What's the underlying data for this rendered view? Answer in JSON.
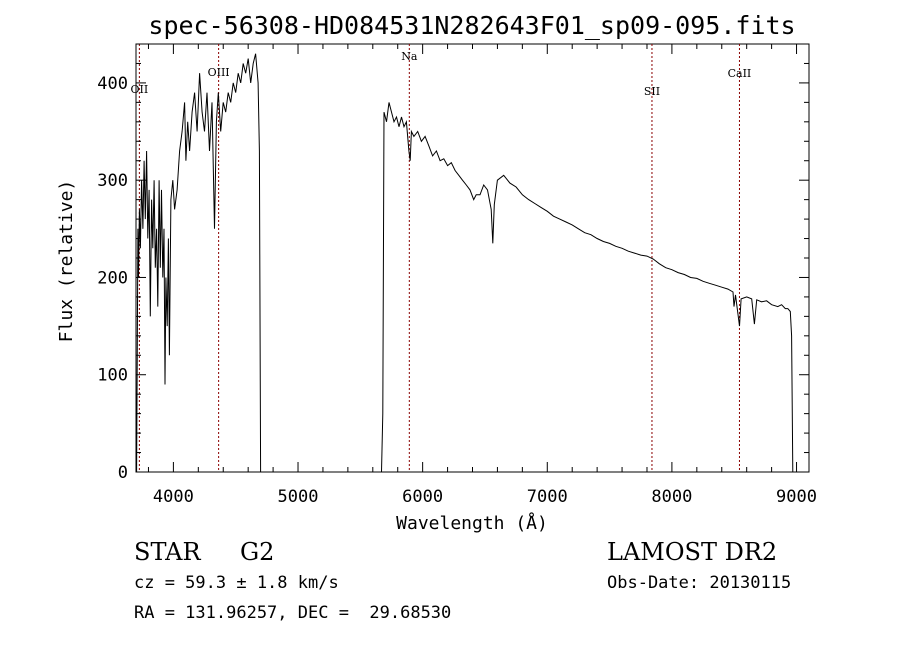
{
  "chart_data": {
    "type": "line",
    "title": "spec-56308-HD084531N282643F01_sp09-095.fits",
    "xlabel": "Wavelength (Å)",
    "ylabel": "Flux (relative)",
    "xlim": [
      3700,
      9100
    ],
    "ylim": [
      0,
      440
    ],
    "xticks": [
      4000,
      5000,
      6000,
      7000,
      8000,
      9000
    ],
    "yticks": [
      0,
      100,
      200,
      300,
      400
    ],
    "grid": false,
    "line_color": "#000000",
    "marker_color": "#8b0000",
    "lines": [
      {
        "label": "OII",
        "x": 3727
      },
      {
        "label": "OIII",
        "x": 4363
      },
      {
        "label": "Na",
        "x": 5893
      },
      {
        "label": "SII",
        "x": 7840
      },
      {
        "label": "CaII",
        "x": 8542
      }
    ],
    "series": [
      {
        "segments": [
          [
            [
              3705,
              0
            ],
            [
              3710,
              110
            ],
            [
              3715,
              250
            ],
            [
              3720,
              200
            ],
            [
              3727,
              270
            ],
            [
              3735,
              230
            ],
            [
              3745,
              300
            ],
            [
              3755,
              250
            ],
            [
              3765,
              320
            ],
            [
              3775,
              260
            ],
            [
              3785,
              330
            ],
            [
              3795,
              240
            ],
            [
              3805,
              290
            ],
            [
              3815,
              160
            ],
            [
              3825,
              280
            ],
            [
              3835,
              230
            ],
            [
              3845,
              300
            ],
            [
              3855,
              210
            ],
            [
              3865,
              250
            ],
            [
              3875,
              170
            ],
            [
              3885,
              300
            ],
            [
              3895,
              210
            ],
            [
              3905,
              290
            ],
            [
              3915,
              200
            ],
            [
              3925,
              250
            ],
            [
              3933,
              90
            ],
            [
              3940,
              200
            ],
            [
              3950,
              150
            ],
            [
              3960,
              240
            ],
            [
              3968,
              120
            ],
            [
              3980,
              280
            ],
            [
              3995,
              300
            ],
            [
              4010,
              270
            ],
            [
              4030,
              290
            ],
            [
              4050,
              330
            ],
            [
              4070,
              350
            ],
            [
              4090,
              380
            ],
            [
              4100,
              320
            ],
            [
              4115,
              360
            ],
            [
              4130,
              330
            ],
            [
              4150,
              370
            ],
            [
              4170,
              390
            ],
            [
              4190,
              350
            ],
            [
              4210,
              410
            ],
            [
              4230,
              370
            ],
            [
              4250,
              350
            ],
            [
              4270,
              390
            ],
            [
              4290,
              330
            ],
            [
              4310,
              380
            ],
            [
              4330,
              250
            ],
            [
              4345,
              360
            ],
            [
              4360,
              390
            ],
            [
              4380,
              350
            ],
            [
              4400,
              380
            ],
            [
              4420,
              370
            ],
            [
              4440,
              390
            ],
            [
              4460,
              380
            ],
            [
              4480,
              400
            ],
            [
              4500,
              390
            ],
            [
              4520,
              410
            ],
            [
              4540,
              400
            ],
            [
              4560,
              420
            ],
            [
              4580,
              410
            ],
            [
              4600,
              425
            ],
            [
              4620,
              400
            ],
            [
              4640,
              420
            ],
            [
              4660,
              430
            ],
            [
              4680,
              400
            ],
            [
              4690,
              330
            ],
            [
              4700,
              0
            ]
          ],
          [
            [
              5670,
              0
            ],
            [
              5680,
              60
            ],
            [
              5690,
              370
            ],
            [
              5710,
              360
            ],
            [
              5730,
              380
            ],
            [
              5750,
              370
            ],
            [
              5770,
              360
            ],
            [
              5790,
              365
            ],
            [
              5810,
              355
            ],
            [
              5830,
              365
            ],
            [
              5850,
              355
            ],
            [
              5870,
              360
            ],
            [
              5890,
              330
            ],
            [
              5900,
              320
            ],
            [
              5910,
              350
            ],
            [
              5930,
              345
            ],
            [
              5960,
              350
            ],
            [
              5990,
              340
            ],
            [
              6020,
              345
            ],
            [
              6050,
              335
            ],
            [
              6080,
              325
            ],
            [
              6110,
              330
            ],
            [
              6140,
              320
            ],
            [
              6170,
              322
            ],
            [
              6200,
              315
            ],
            [
              6230,
              318
            ],
            [
              6260,
              310
            ],
            [
              6290,
              305
            ],
            [
              6320,
              300
            ],
            [
              6350,
              295
            ],
            [
              6380,
              290
            ],
            [
              6410,
              280
            ],
            [
              6430,
              285
            ],
            [
              6460,
              285
            ],
            [
              6490,
              295
            ],
            [
              6520,
              290
            ],
            [
              6550,
              270
            ],
            [
              6563,
              235
            ],
            [
              6575,
              275
            ],
            [
              6600,
              300
            ],
            [
              6650,
              305
            ],
            [
              6700,
              297
            ],
            [
              6750,
              293
            ],
            [
              6800,
              285
            ],
            [
              6850,
              280
            ],
            [
              6900,
              276
            ],
            [
              6950,
              272
            ],
            [
              7000,
              268
            ],
            [
              7050,
              263
            ],
            [
              7100,
              260
            ],
            [
              7150,
              257
            ],
            [
              7200,
              254
            ],
            [
              7250,
              250
            ],
            [
              7300,
              246
            ],
            [
              7350,
              244
            ],
            [
              7400,
              240
            ],
            [
              7450,
              237
            ],
            [
              7500,
              235
            ],
            [
              7550,
              232
            ],
            [
              7600,
              230
            ],
            [
              7650,
              227
            ],
            [
              7700,
              225
            ],
            [
              7750,
              223
            ],
            [
              7800,
              222
            ],
            [
              7850,
              219
            ],
            [
              7900,
              214
            ],
            [
              7950,
              210
            ],
            [
              8000,
              208
            ],
            [
              8050,
              205
            ],
            [
              8100,
              203
            ],
            [
              8150,
              200
            ],
            [
              8200,
              199
            ],
            [
              8250,
              196
            ],
            [
              8300,
              194
            ],
            [
              8350,
              192
            ],
            [
              8400,
              190
            ],
            [
              8450,
              188
            ],
            [
              8490,
              185
            ],
            [
              8498,
              170
            ],
            [
              8510,
              182
            ],
            [
              8542,
              150
            ],
            [
              8555,
              178
            ],
            [
              8600,
              180
            ],
            [
              8640,
              178
            ],
            [
              8662,
              152
            ],
            [
              8680,
              177
            ],
            [
              8720,
              175
            ],
            [
              8760,
              176
            ],
            [
              8800,
              172
            ],
            [
              8850,
              170
            ],
            [
              8880,
              172
            ],
            [
              8910,
              168
            ],
            [
              8930,
              168
            ],
            [
              8950,
              165
            ],
            [
              8960,
              140
            ],
            [
              8970,
              0
            ]
          ]
        ]
      }
    ]
  },
  "info": {
    "class_label": "STAR",
    "subclass": "G2",
    "survey": "LAMOST DR2",
    "redshift_text": "cz = 59.3 ± 1.8 km/s",
    "obs_date_text": "Obs-Date: 20130115",
    "coords_text": "RA = 131.96257, DEC =  29.68530"
  }
}
